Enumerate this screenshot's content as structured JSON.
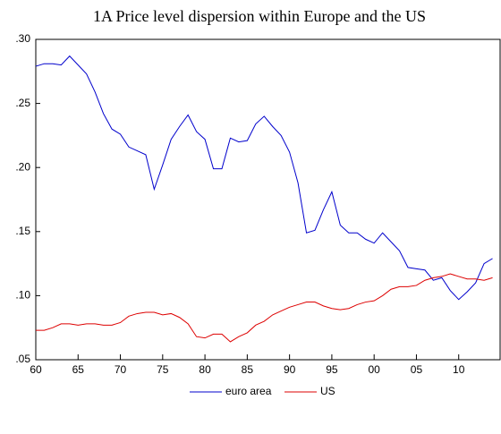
{
  "chart_data": {
    "type": "line",
    "title": "1A Price level dispersion within Europe and the US",
    "x": [
      1960,
      1961,
      1962,
      1963,
      1964,
      1965,
      1966,
      1967,
      1968,
      1969,
      1970,
      1971,
      1972,
      1973,
      1974,
      1975,
      1976,
      1977,
      1978,
      1979,
      1980,
      1981,
      1982,
      1983,
      1984,
      1985,
      1986,
      1987,
      1988,
      1989,
      1990,
      1991,
      1992,
      1993,
      1994,
      1995,
      1996,
      1997,
      1998,
      1999,
      2000,
      2001,
      2002,
      2003,
      2004,
      2005,
      2006,
      2007,
      2008,
      2009,
      2010,
      2011,
      2012,
      2013,
      2014
    ],
    "series": [
      {
        "name": "euro area",
        "color": "#0000cc",
        "values": [
          0.279,
          0.281,
          0.281,
          0.28,
          0.287,
          0.28,
          0.273,
          0.259,
          0.242,
          0.23,
          0.226,
          0.216,
          0.213,
          0.21,
          0.183,
          0.202,
          0.222,
          0.232,
          0.241,
          0.228,
          0.222,
          0.199,
          0.199,
          0.223,
          0.22,
          0.221,
          0.234,
          0.24,
          0.232,
          0.225,
          0.212,
          0.188,
          0.149,
          0.151,
          0.167,
          0.181,
          0.155,
          0.149,
          0.149,
          0.144,
          0.141,
          0.149,
          0.142,
          0.135,
          0.122,
          0.121,
          0.12,
          0.112,
          0.114,
          0.104,
          0.097,
          0.103,
          0.11,
          0.125,
          0.129
        ]
      },
      {
        "name": "US",
        "color": "#dd0000",
        "values": [
          0.073,
          0.073,
          0.075,
          0.078,
          0.078,
          0.077,
          0.078,
          0.078,
          0.077,
          0.077,
          0.079,
          0.084,
          0.086,
          0.087,
          0.087,
          0.085,
          0.086,
          0.083,
          0.078,
          0.068,
          0.067,
          0.07,
          0.07,
          0.064,
          0.068,
          0.071,
          0.077,
          0.08,
          0.085,
          0.088,
          0.091,
          0.093,
          0.095,
          0.095,
          0.092,
          0.09,
          0.089,
          0.09,
          0.093,
          0.095,
          0.096,
          0.1,
          0.105,
          0.107,
          0.107,
          0.108,
          0.112,
          0.114,
          0.115,
          0.117,
          0.115,
          0.113,
          0.113,
          0.112,
          0.114
        ]
      }
    ],
    "xlim": [
      1960,
      2015
    ],
    "xticks": [
      {
        "value": 1960,
        "label": "60"
      },
      {
        "value": 1965,
        "label": "65"
      },
      {
        "value": 1970,
        "label": "70"
      },
      {
        "value": 1975,
        "label": "75"
      },
      {
        "value": 1980,
        "label": "80"
      },
      {
        "value": 1985,
        "label": "85"
      },
      {
        "value": 1990,
        "label": "90"
      },
      {
        "value": 1995,
        "label": "95"
      },
      {
        "value": 2000,
        "label": "00"
      },
      {
        "value": 2005,
        "label": "05"
      },
      {
        "value": 2010,
        "label": "10"
      }
    ],
    "ylim": [
      0.05,
      0.3
    ],
    "yticks": [
      {
        "value": 0.05,
        "label": ".05"
      },
      {
        "value": 0.1,
        "label": ".10"
      },
      {
        "value": 0.15,
        "label": ".15"
      },
      {
        "value": 0.2,
        "label": ".20"
      },
      {
        "value": 0.25,
        "label": ".25"
      },
      {
        "value": 0.3,
        "label": ".30"
      }
    ],
    "legend": "bottom"
  }
}
